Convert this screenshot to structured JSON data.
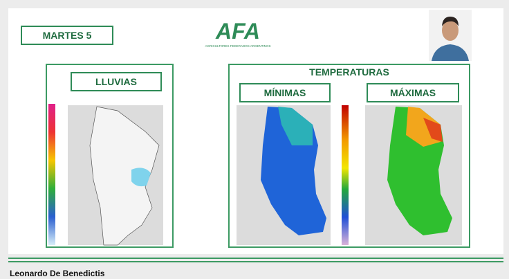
{
  "header": {
    "day": "MARTES 5",
    "logo": "AFA",
    "logo_subtitle": "AGRICULTORES FEDERADOS ARGENTINOS"
  },
  "panels": {
    "rain": {
      "title": "LLUVIAS"
    },
    "temperature": {
      "title": "TEMPERATURAS",
      "min": "MÍNIMAS",
      "max": "MÁXIMAS"
    }
  },
  "footer": {
    "presenter": "Leonardo De Benedictis"
  }
}
